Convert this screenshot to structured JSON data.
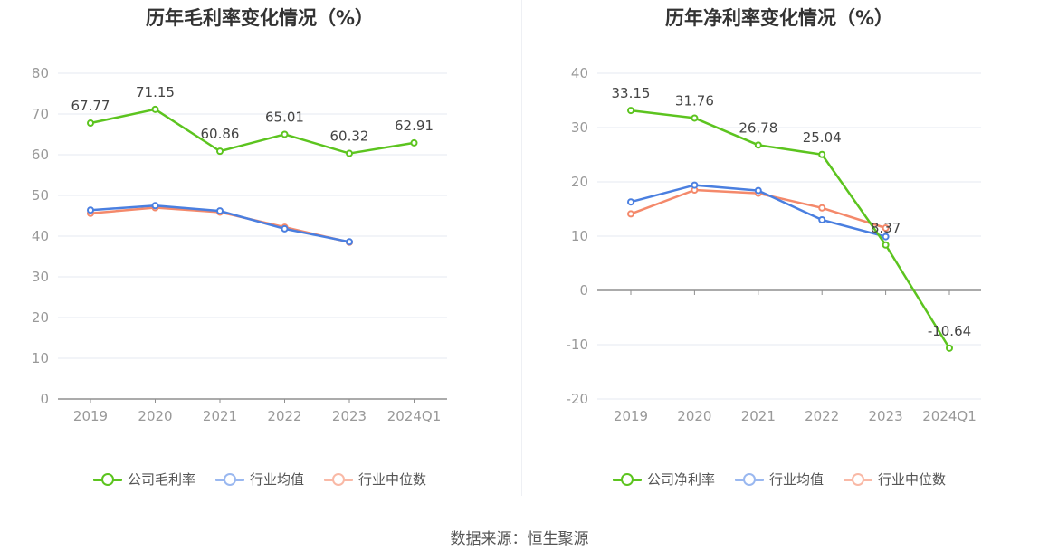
{
  "source": "数据来源：恒生聚源",
  "chart_data": [
    {
      "type": "line",
      "title": "历年毛利率变化情况（%）",
      "categories": [
        "2019",
        "2020",
        "2021",
        "2022",
        "2023",
        "2024Q1"
      ],
      "ylim": [
        0,
        80
      ],
      "yticks": [
        0,
        10,
        20,
        30,
        40,
        50,
        60,
        70,
        80
      ],
      "grid": true,
      "legend_position": "bottom",
      "series": [
        {
          "name": "公司毛利率",
          "color": "#5cc41f",
          "values": [
            67.77,
            71.15,
            60.86,
            65.01,
            60.32,
            62.91
          ],
          "labels": [
            "67.77",
            "71.15",
            "60.86",
            "65.01",
            "60.32",
            "62.91"
          ]
        },
        {
          "name": "行业均值",
          "color": "#4a7fe0",
          "values": [
            46.4,
            47.5,
            46.2,
            41.8,
            38.6,
            null
          ]
        },
        {
          "name": "行业中位数",
          "color": "#f4896b",
          "values": [
            45.6,
            47.0,
            45.9,
            42.2,
            38.5,
            null
          ]
        }
      ]
    },
    {
      "type": "line",
      "title": "历年净利率变化情况（%）",
      "categories": [
        "2019",
        "2020",
        "2021",
        "2022",
        "2023",
        "2024Q1"
      ],
      "ylim": [
        -20,
        40
      ],
      "yticks": [
        -20,
        -10,
        0,
        10,
        20,
        30,
        40
      ],
      "grid": true,
      "legend_position": "bottom",
      "series": [
        {
          "name": "公司净利率",
          "color": "#5cc41f",
          "values": [
            33.15,
            31.76,
            26.78,
            25.04,
            8.37,
            -10.64
          ],
          "labels": [
            "33.15",
            "31.76",
            "26.78",
            "25.04",
            "8.37",
            "-10.64"
          ]
        },
        {
          "name": "行业均值",
          "color": "#4a7fe0",
          "values": [
            16.3,
            19.4,
            18.4,
            13.0,
            9.9,
            null
          ]
        },
        {
          "name": "行业中位数",
          "color": "#f4896b",
          "values": [
            14.1,
            18.5,
            17.9,
            15.2,
            11.5,
            null
          ]
        }
      ]
    }
  ]
}
